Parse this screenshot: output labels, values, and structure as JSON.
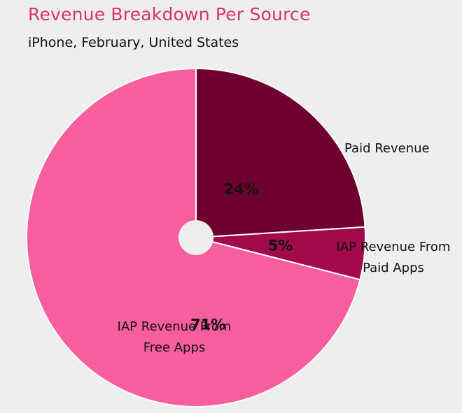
{
  "chart_data": {
    "type": "pie",
    "title": "Revenue Breakdown Per Source",
    "subtitle": "iPhone, February, United States",
    "categories": [
      "Paid Revenue",
      "IAP Revenue From Paid Apps",
      "IAP Revenue From Free Apps"
    ],
    "values": [
      24,
      5,
      71
    ],
    "value_labels": [
      "24%",
      "5%",
      "71%"
    ],
    "label_lines": [
      [
        "Paid Revenue"
      ],
      [
        "IAP Revenue From",
        "Paid Apps"
      ],
      [
        "IAP Revenue From",
        "Free Apps"
      ]
    ],
    "colors": [
      "#6e0030",
      "#a3094b",
      "#f95e9f"
    ],
    "donut_hole": true
  }
}
